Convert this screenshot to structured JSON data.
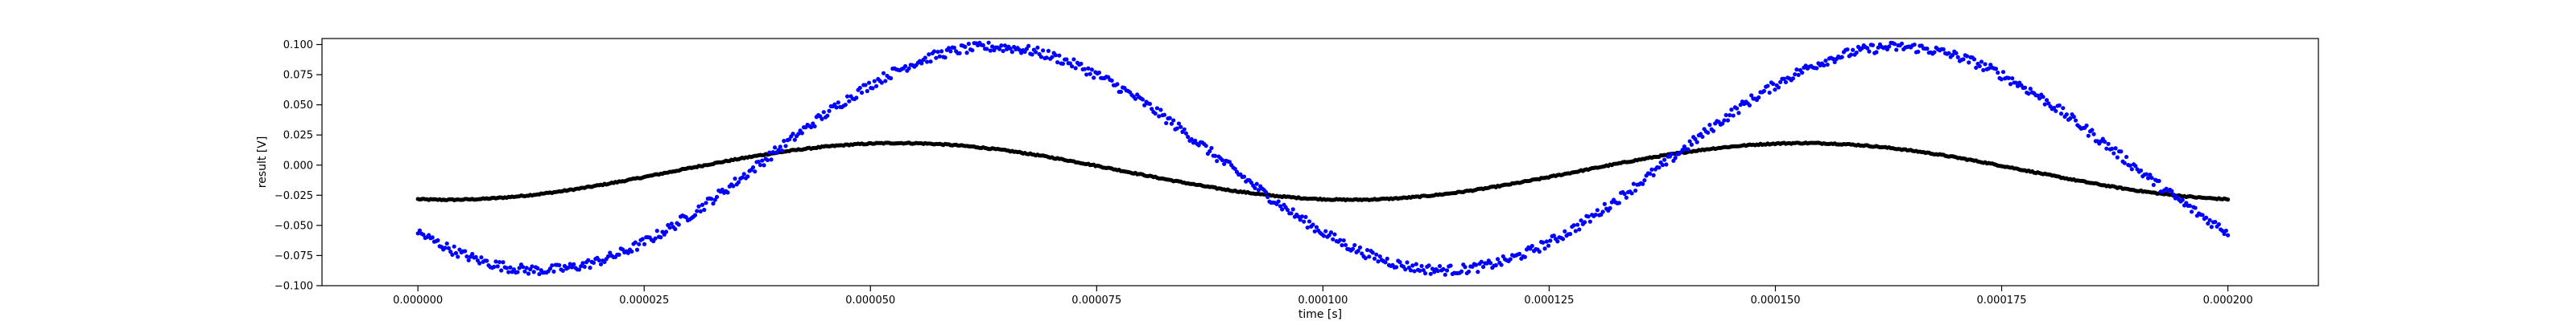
{
  "chart_data": {
    "type": "scatter",
    "title": "",
    "xlabel": "time [s]",
    "ylabel": "result [V]",
    "xlim": [
      -1.06e-05,
      0.00021
    ],
    "ylim": [
      -0.1,
      0.105
    ],
    "grid": false,
    "legend": "none",
    "x_ticks": [
      0,
      2.5e-05,
      5e-05,
      7.5e-05,
      0.0001,
      0.000125,
      0.00015,
      0.000175,
      0.0002
    ],
    "x_tick_labels": [
      "0.000000",
      "0.000025",
      "0.000050",
      "0.000075",
      "0.000100",
      "0.000125",
      "0.000150",
      "0.000175",
      "0.000200"
    ],
    "y_ticks": [
      -0.1,
      -0.075,
      -0.05,
      -0.025,
      0,
      0.025,
      0.05,
      0.075,
      0.1
    ],
    "y_tick_labels": [
      "−0.100",
      "−0.075",
      "−0.050",
      "−0.025",
      "0.000",
      "0.025",
      "0.050",
      "0.075",
      "0.100"
    ],
    "series": [
      {
        "color": "#000000",
        "noise": 0.0005,
        "marker": "dot",
        "x_range": [
          0,
          0.0002
        ],
        "points": 1000,
        "model": {
          "type": "sine",
          "amplitude": 0.0235,
          "frequency_hz": 10000,
          "phase_rad": -1.77,
          "offset": -0.0052
        }
      },
      {
        "color": "#0000ff",
        "noise": 0.004,
        "marker": "dot",
        "x_range": [
          0,
          0.0002
        ],
        "points": 1000,
        "model": {
          "type": "sine",
          "amplitude": 0.0925,
          "frequency_hz": 10000,
          "phase_rad": -2.42,
          "offset": 0.0055
        }
      }
    ]
  }
}
